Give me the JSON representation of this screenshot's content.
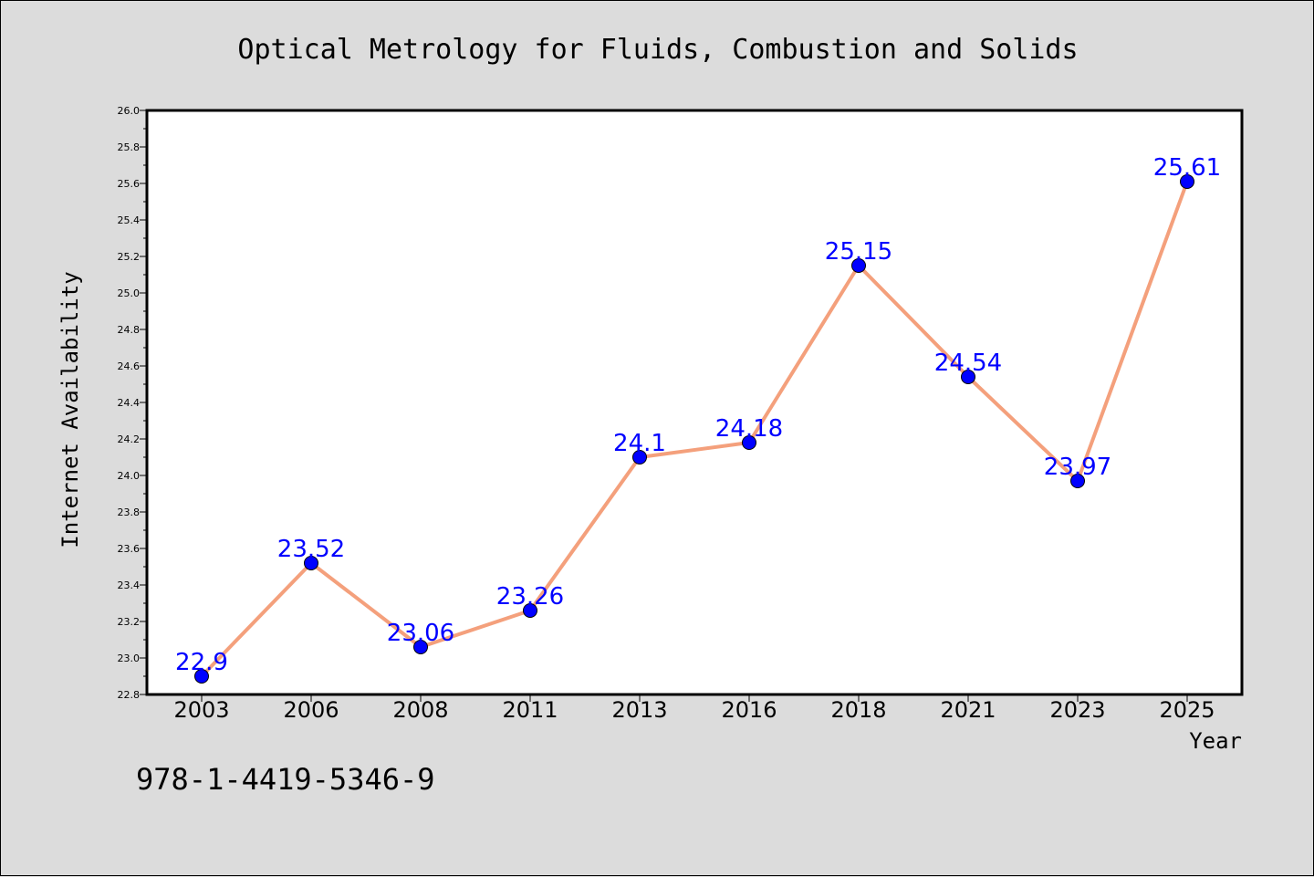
{
  "chart_data": {
    "type": "line",
    "title": "Optical Metrology for Fluids, Combustion and Solids",
    "xlabel": "Year",
    "ylabel": "Internet Availability",
    "categories": [
      "2003",
      "2006",
      "2008",
      "2011",
      "2013",
      "2016",
      "2018",
      "2021",
      "2023",
      "2025"
    ],
    "series": [
      {
        "values": [
          22.9,
          23.52,
          23.06,
          23.26,
          24.1,
          24.18,
          25.15,
          24.54,
          23.97,
          25.61
        ],
        "labels": [
          "22.9",
          "23.52",
          "23.06",
          "23.26",
          "24.1",
          "24.18",
          "25.15",
          "24.54",
          "23.97",
          "25.61"
        ],
        "line_color": "#f4a07c",
        "marker_color": "#0000ff"
      }
    ],
    "ylim": [
      22.8,
      26.0
    ],
    "yticks": [
      "22.8",
      "23.0",
      "23.2",
      "23.4",
      "23.6",
      "23.8",
      "24.0",
      "24.2",
      "24.4",
      "24.6",
      "24.8",
      "25.0",
      "25.2",
      "25.4",
      "25.6",
      "25.8",
      "26.0"
    ],
    "grid": false,
    "legend": "none",
    "plot_background": "#ffffff",
    "figure_background": "#dcdcdc",
    "data_label_color": "#0000ff"
  },
  "annotation": {
    "isbn": "978-1-4419-5346-9"
  }
}
